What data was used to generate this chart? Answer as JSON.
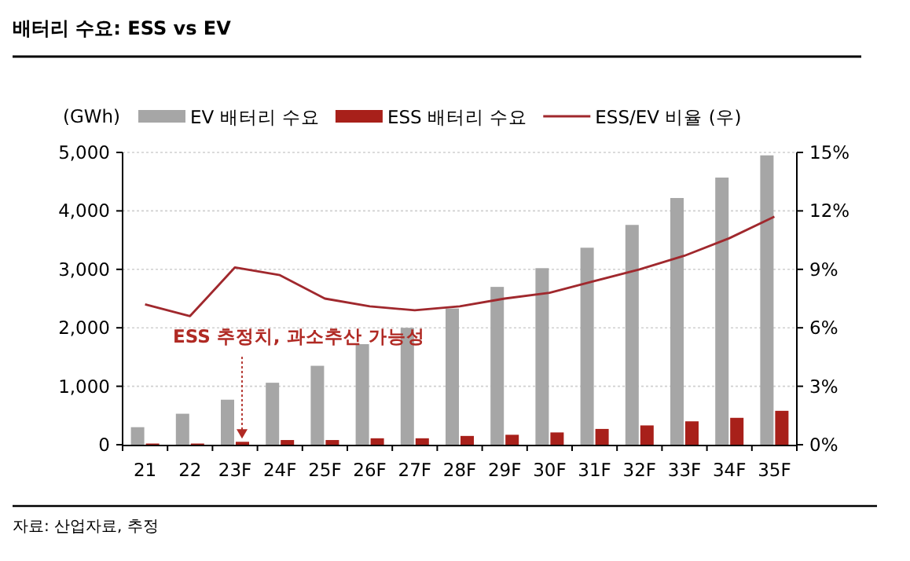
{
  "chart_data": {
    "type": "bar",
    "title": "배터리 수요: ESS vs EV",
    "ylabel": "(GWh)",
    "categories": [
      "21",
      "22",
      "23F",
      "24F",
      "25F",
      "26F",
      "27F",
      "28F",
      "29F",
      "30F",
      "31F",
      "32F",
      "33F",
      "34F",
      "35F"
    ],
    "series": [
      {
        "name": "EV 배터리 수요",
        "color": "#a6a6a6",
        "values": [
          300,
          530,
          770,
          1060,
          1350,
          1720,
          2000,
          2330,
          2700,
          3020,
          3370,
          3760,
          4220,
          4570,
          4950
        ]
      },
      {
        "name": "ESS 배터리 수요",
        "color": "#a8201a",
        "values": [
          20,
          20,
          50,
          80,
          80,
          110,
          110,
          150,
          170,
          210,
          270,
          330,
          400,
          460,
          580
        ]
      },
      {
        "name": "ESS/EV 비율 (우)",
        "type": "line",
        "axis": "y2",
        "color": "#a0282d",
        "values": [
          7.2,
          6.6,
          9.1,
          8.7,
          7.5,
          7.1,
          6.9,
          7.1,
          7.5,
          7.8,
          8.4,
          9.0,
          9.7,
          10.6,
          11.7
        ]
      }
    ],
    "ylim": [
      0,
      5000
    ],
    "yticks": [
      0,
      {
        "value": 1000,
        "label": "1,000"
      },
      {
        "value": 2000,
        "label": "2,000"
      },
      {
        "value": 3000,
        "label": "3,000"
      },
      {
        "value": 4000,
        "label": "4,000"
      },
      {
        "value": 5000,
        "label": "5,000"
      }
    ],
    "y2lim": [
      0,
      15
    ],
    "y2ticks": [
      {
        "value": 0,
        "label": "0%"
      },
      {
        "value": 3,
        "label": "3%"
      },
      {
        "value": 6,
        "label": "6%"
      },
      {
        "value": 9,
        "label": "9%"
      },
      {
        "value": 12,
        "label": "12%"
      },
      {
        "value": 15,
        "label": "15%"
      }
    ],
    "grid": "y",
    "legend": "top",
    "annotations": [
      {
        "text": "ESS 추정치, 과소추산 가능성",
        "x": "23F",
        "y": 50
      },
      "자료: 산업자료, 추정"
    ]
  }
}
